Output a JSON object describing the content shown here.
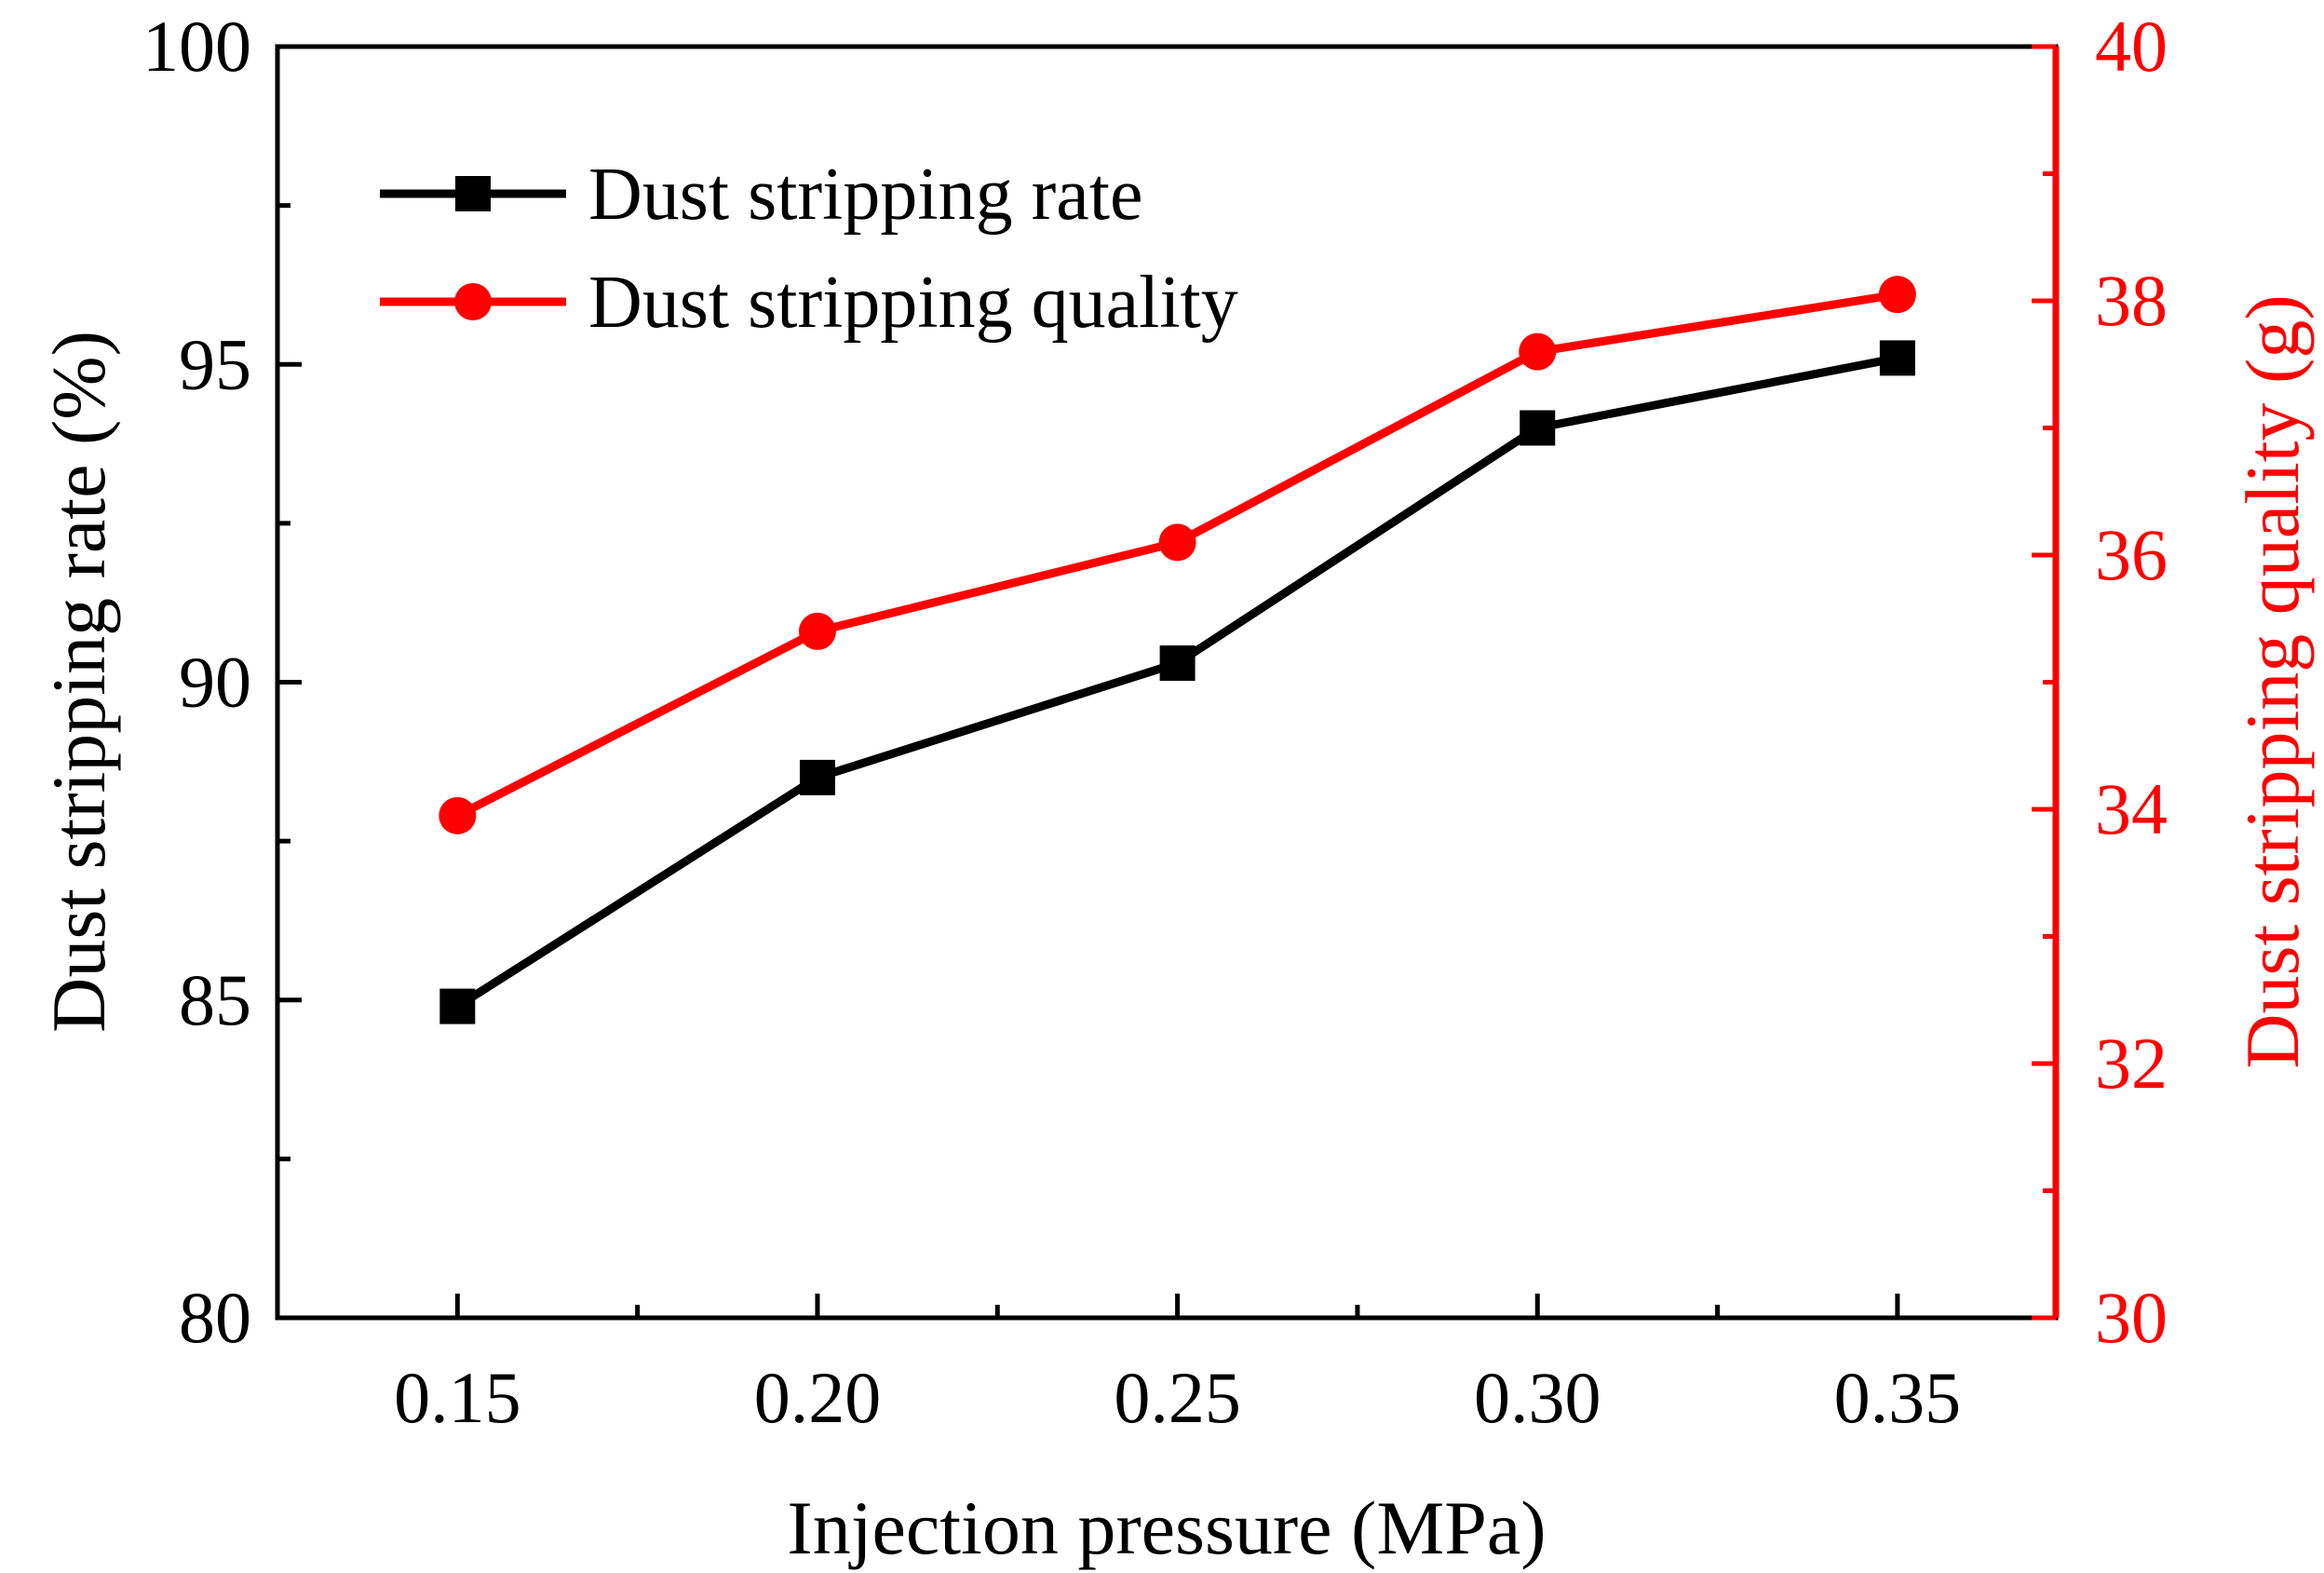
{
  "chart_data": {
    "type": "line",
    "title": "",
    "xlabel": "Injection pressure (MPa)",
    "ylabel": "Dust stripping rate (%)",
    "y2label": "Dust stripping quality (g)",
    "x": [
      0.15,
      0.2,
      0.25,
      0.3,
      0.35
    ],
    "x_tick_labels": [
      "0.15",
      "0.20",
      "0.25",
      "0.30",
      "0.35"
    ],
    "xlim": [
      0.125,
      0.372
    ],
    "ylim": [
      80,
      100
    ],
    "y_ticks": [
      80,
      85,
      90,
      95,
      100
    ],
    "y_tick_labels": [
      "80",
      "85",
      "90",
      "95",
      "100"
    ],
    "y2lim": [
      30,
      40
    ],
    "y2_ticks": [
      30,
      32,
      34,
      36,
      38,
      40
    ],
    "y2_tick_labels": [
      "30",
      "32",
      "34",
      "36",
      "38",
      "40"
    ],
    "legend_position": "top-left",
    "grid": false,
    "series": [
      {
        "name": "Dust stripping rate",
        "axis": "left",
        "marker": "square",
        "color": "#000000",
        "values": [
          84.9,
          88.5,
          90.3,
          94.0,
          95.1
        ]
      },
      {
        "name": "Dust stripping quality",
        "axis": "right",
        "marker": "circle",
        "color": "#ff0000",
        "values": [
          33.95,
          35.4,
          36.1,
          37.6,
          38.05
        ]
      }
    ]
  }
}
